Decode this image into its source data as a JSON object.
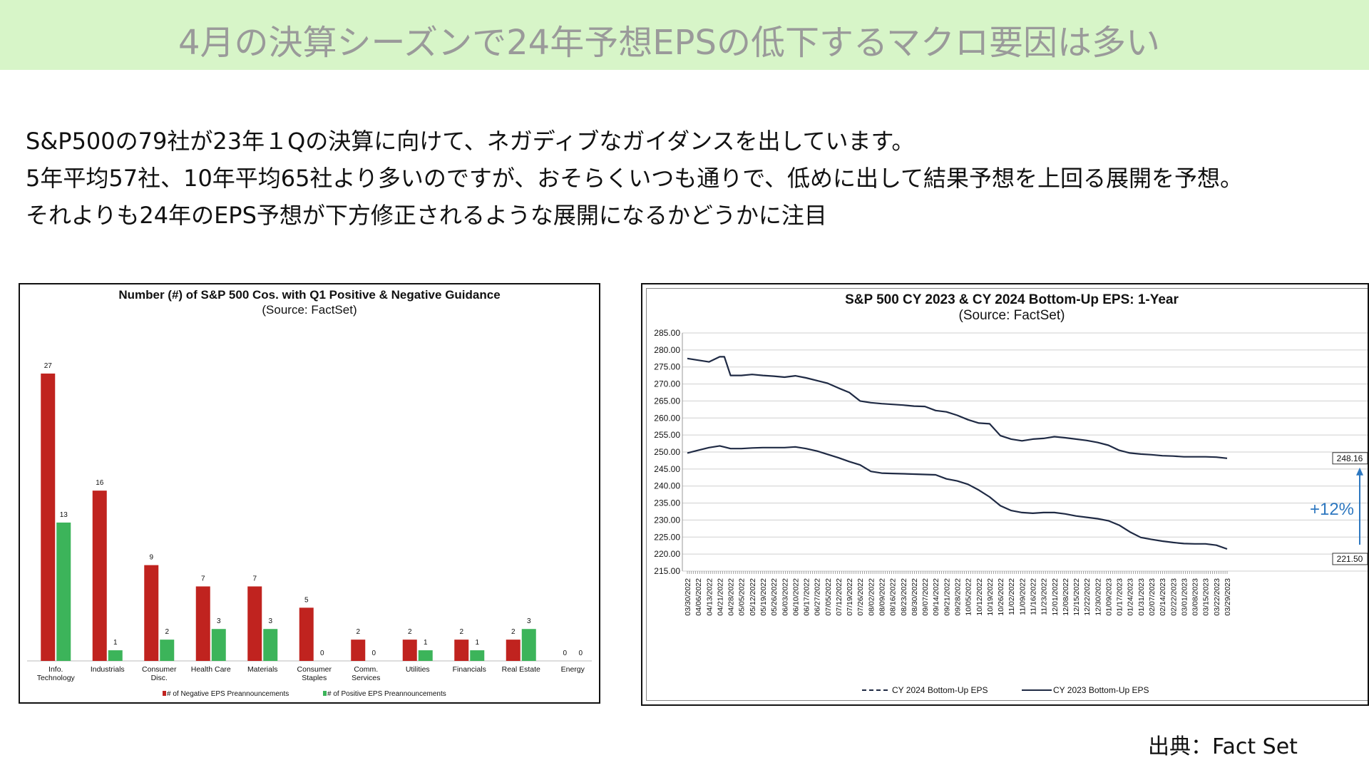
{
  "header": {
    "title": "4月の決算シーズンで24年予想EPSの低下するマクロ要因は多い"
  },
  "body": {
    "lines": [
      "S&P500の79社が23年１Qの決算に向けて、ネガディブなガイダンスを出しています。",
      "5年平均57社、10年平均65社より多いのですが、おそらくいつも通りで、低めに出して結果予想を上回る展開を予想。",
      "それよりも24年のEPS予想が下方修正されるような展開になるかどうかに注目"
    ]
  },
  "source": "出典：Fact Set",
  "colors": {
    "title_bg": "#d7f5c8",
    "negative": "#c0231f",
    "positive": "#3cb45a",
    "line": "#1f2a44",
    "arrow": "#2e78c0"
  },
  "chart_data": [
    {
      "type": "bar",
      "title": "Number (#) of S&P 500 Cos. with Q1 Positive & Negative Guidance",
      "subtitle": "(Source: FactSet)",
      "categories": [
        [
          "Info.",
          "Technology"
        ],
        [
          "Industrials"
        ],
        [
          "Consumer",
          "Disc."
        ],
        [
          "Health Care"
        ],
        [
          "Materials"
        ],
        [
          "Consumer",
          "Staples"
        ],
        [
          "Comm.",
          "Services"
        ],
        [
          "Utilities"
        ],
        [
          "Financials"
        ],
        [
          "Real Estate"
        ],
        [
          "Energy"
        ]
      ],
      "series": [
        {
          "name": "# of Negative EPS Preannouncements",
          "color": "#c0231f",
          "values": [
            27,
            16,
            9,
            7,
            7,
            5,
            2,
            2,
            2,
            2,
            0
          ]
        },
        {
          "name": "# of Positive EPS Preannouncements",
          "color": "#3cb45a",
          "values": [
            13,
            1,
            2,
            3,
            3,
            0,
            0,
            1,
            1,
            3,
            0
          ]
        }
      ],
      "ylim": [
        0,
        28
      ],
      "grid": false,
      "legend": "bottom"
    },
    {
      "type": "line",
      "title": "S&P 500 CY 2023 & CY 2024 Bottom-Up  EPS: 1-Year",
      "subtitle": "(Source: FactSet)",
      "ylim": [
        215,
        285
      ],
      "yticks": [
        "215.00",
        "220.00",
        "225.00",
        "230.00",
        "235.00",
        "240.00",
        "245.00",
        "250.00",
        "255.00",
        "260.00",
        "265.00",
        "270.00",
        "275.00",
        "280.00",
        "285.00"
      ],
      "xticks": [
        "03/30/2022",
        "04/06/2022",
        "04/13/2022",
        "04/21/2022",
        "04/28/2022",
        "05/05/2022",
        "05/12/2022",
        "05/19/2022",
        "05/26/2022",
        "06/03/2022",
        "06/10/2022",
        "06/17/2022",
        "06/27/2022",
        "07/05/2022",
        "07/12/2022",
        "07/19/2022",
        "07/26/2022",
        "08/02/2022",
        "08/09/2022",
        "08/16/2022",
        "08/23/2022",
        "08/30/2022",
        "09/07/2022",
        "09/14/2022",
        "09/21/2022",
        "09/28/2022",
        "10/05/2022",
        "10/12/2022",
        "10/19/2022",
        "10/26/2022",
        "11/02/2022",
        "11/09/2022",
        "11/16/2022",
        "11/23/2022",
        "12/01/2022",
        "12/08/2022",
        "12/15/2022",
        "12/22/2022",
        "12/30/2022",
        "01/09/2023",
        "01/17/2023",
        "01/24/2023",
        "01/31/2023",
        "02/07/2023",
        "02/14/2023",
        "02/22/2023",
        "03/01/2023",
        "03/08/2023",
        "03/15/2023",
        "03/22/2023",
        "03/29/2023"
      ],
      "grid": true,
      "legend": "bottom",
      "series": [
        {
          "name": "CY 2024 Bottom-Up EPS",
          "style": "dashed",
          "x": [
            "03/30/2022",
            "04/06/2022",
            "04/13/2022",
            "04/21/2022",
            "04/24/2022",
            "04/28/2022",
            "05/05/2022",
            "05/12/2022",
            "05/19/2022",
            "05/26/2022",
            "06/03/2022",
            "06/10/2022",
            "06/17/2022",
            "06/27/2022",
            "07/05/2022",
            "07/12/2022",
            "07/19/2022",
            "07/26/2022",
            "08/02/2022",
            "08/09/2022",
            "08/16/2022",
            "08/23/2022",
            "08/30/2022",
            "09/07/2022",
            "09/14/2022",
            "09/21/2022",
            "09/28/2022",
            "10/05/2022",
            "10/12/2022",
            "10/19/2022",
            "10/26/2022",
            "11/02/2022",
            "11/09/2022",
            "11/16/2022",
            "11/23/2022",
            "12/01/2022",
            "12/08/2022",
            "12/15/2022",
            "12/22/2022",
            "12/30/2022",
            "01/09/2023",
            "01/17/2023",
            "01/24/2023",
            "01/31/2023",
            "02/07/2023",
            "02/14/2023",
            "02/22/2023",
            "03/01/2023",
            "03/08/2023",
            "03/15/2023",
            "03/22/2023",
            "03/29/2023"
          ],
          "values": [
            277.5,
            277.0,
            276.5,
            278.0,
            278.0,
            272.5,
            272.5,
            272.8,
            272.5,
            272.3,
            272.0,
            272.4,
            271.8,
            271.0,
            270.2,
            268.8,
            267.5,
            265.0,
            264.5,
            264.2,
            264.0,
            263.8,
            263.5,
            263.4,
            262.2,
            261.8,
            260.8,
            259.5,
            258.5,
            258.3,
            254.8,
            253.8,
            253.3,
            253.8,
            254.0,
            254.5,
            254.2,
            253.8,
            253.4,
            252.8,
            252.0,
            250.5,
            249.7,
            249.4,
            249.2,
            248.9,
            248.8,
            248.6,
            248.6,
            248.6,
            248.5,
            248.16
          ]
        },
        {
          "name": "CY 2023 Bottom-Up EPS",
          "style": "solid",
          "x": [
            "03/30/2022",
            "04/06/2022",
            "04/13/2022",
            "04/21/2022",
            "04/28/2022",
            "05/05/2022",
            "05/12/2022",
            "05/19/2022",
            "05/26/2022",
            "06/03/2022",
            "06/10/2022",
            "06/17/2022",
            "06/27/2022",
            "07/05/2022",
            "07/12/2022",
            "07/19/2022",
            "07/26/2022",
            "08/02/2022",
            "08/09/2022",
            "08/16/2022",
            "08/23/2022",
            "08/30/2022",
            "09/07/2022",
            "09/14/2022",
            "09/21/2022",
            "09/28/2022",
            "10/05/2022",
            "10/12/2022",
            "10/19/2022",
            "10/26/2022",
            "11/02/2022",
            "11/09/2022",
            "11/16/2022",
            "11/23/2022",
            "12/01/2022",
            "12/08/2022",
            "12/15/2022",
            "12/22/2022",
            "12/30/2022",
            "01/09/2023",
            "01/17/2023",
            "01/24/2023",
            "01/31/2023",
            "02/07/2023",
            "02/14/2023",
            "02/22/2023",
            "03/01/2023",
            "03/08/2023",
            "03/15/2023",
            "03/22/2023",
            "03/29/2023"
          ],
          "values": [
            249.7,
            250.5,
            251.3,
            251.8,
            251.0,
            251.0,
            251.2,
            251.3,
            251.3,
            251.3,
            251.5,
            251.0,
            250.3,
            249.3,
            248.3,
            247.2,
            246.2,
            244.3,
            243.8,
            243.7,
            243.6,
            243.5,
            243.4,
            243.3,
            242.1,
            241.5,
            240.5,
            238.8,
            236.8,
            234.2,
            232.8,
            232.2,
            232.0,
            232.2,
            232.2,
            231.8,
            231.2,
            230.8,
            230.4,
            229.8,
            228.5,
            226.5,
            224.9,
            224.3,
            223.8,
            223.4,
            223.1,
            223.0,
            223.0,
            222.6,
            221.5
          ]
        }
      ],
      "annotations": [
        {
          "label": "248.16"
        },
        {
          "label": "221.50"
        },
        {
          "label": "+12%"
        }
      ]
    }
  ]
}
